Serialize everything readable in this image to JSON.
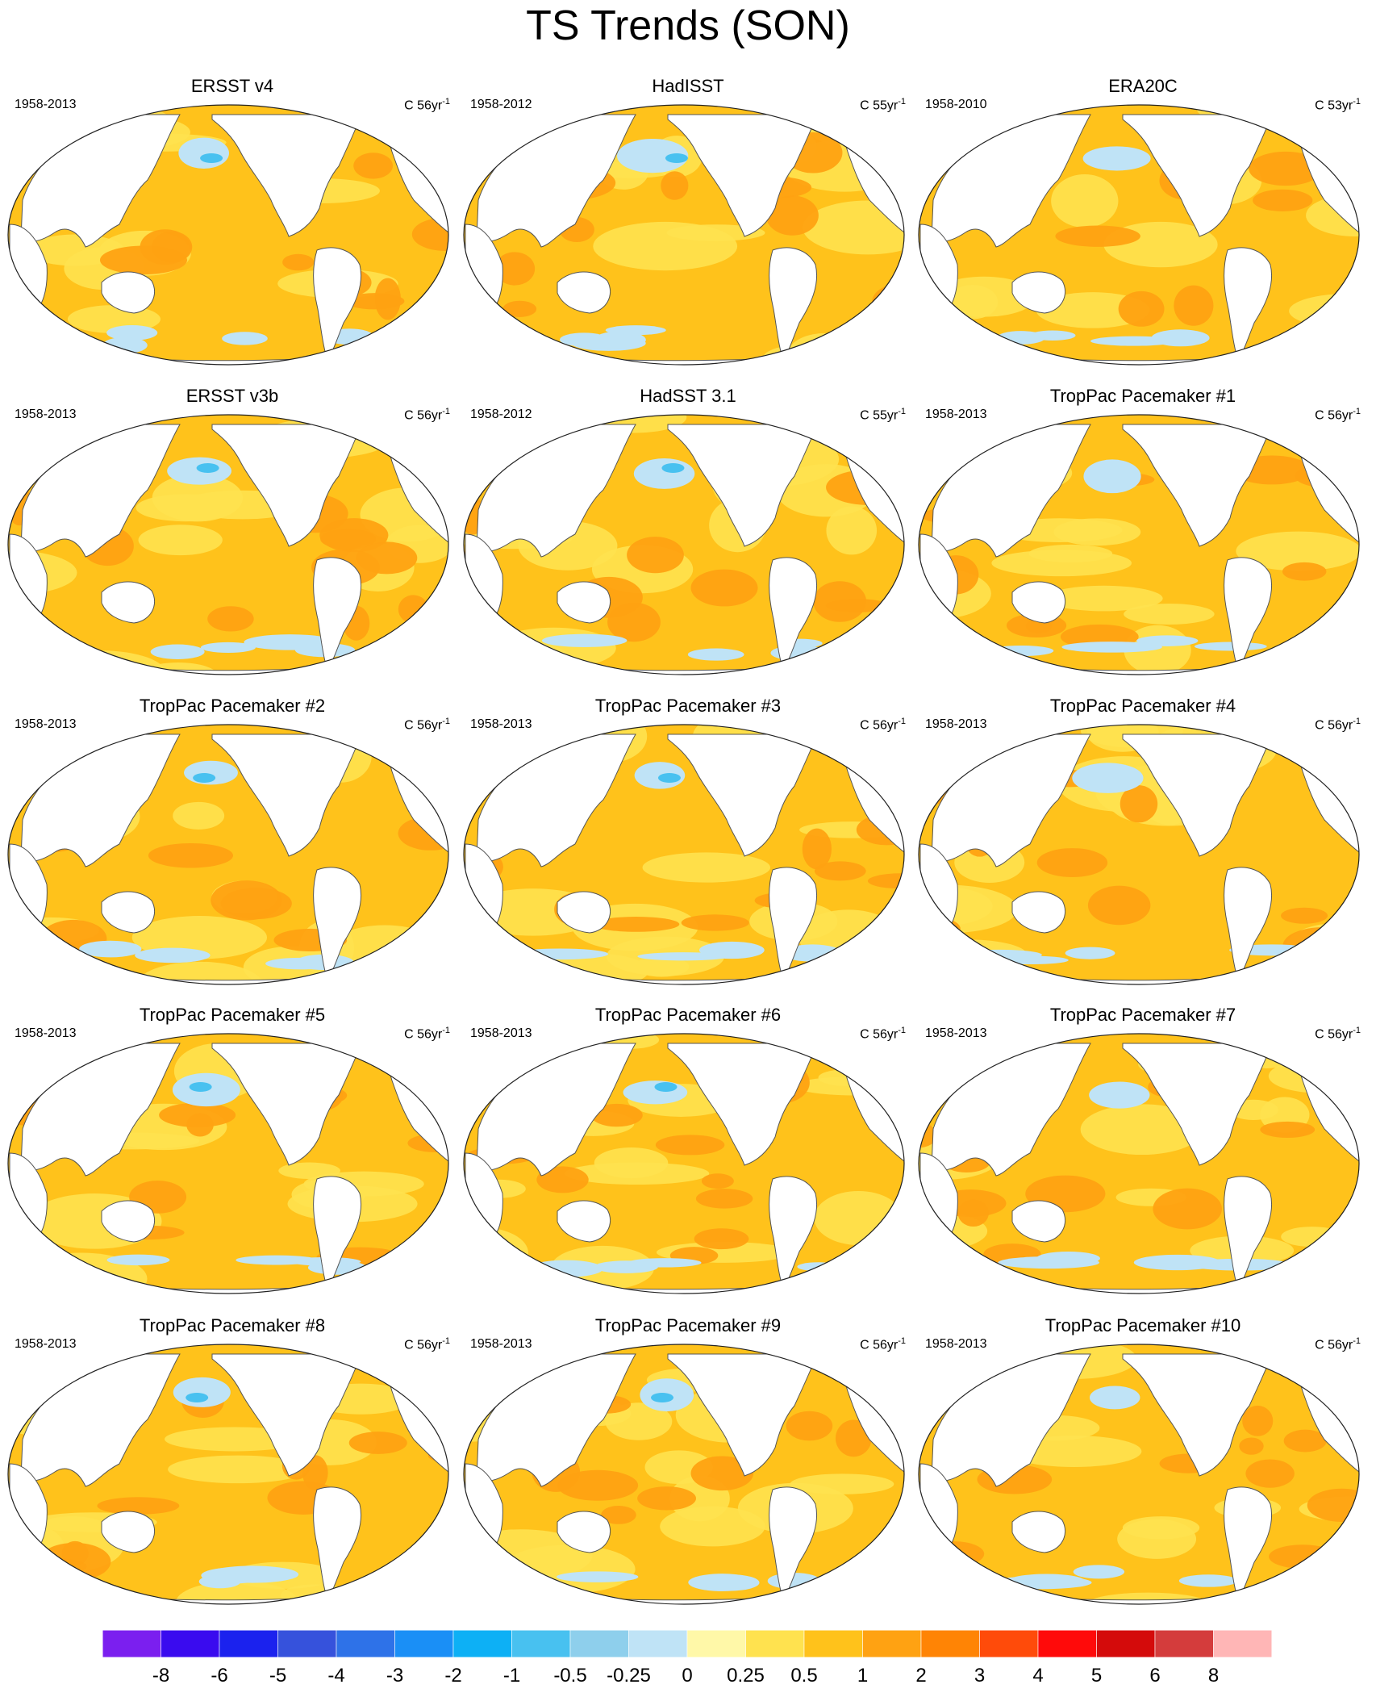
{
  "title": "TS Trends (SON)",
  "panels": [
    {
      "title": "ERSST v4",
      "period": "1958-2013",
      "units": "C 56yr",
      "units_exp": "-1"
    },
    {
      "title": "HadISST",
      "period": "1958-2012",
      "units": "C 55yr",
      "units_exp": "-1"
    },
    {
      "title": "ERA20C",
      "period": "1958-2010",
      "units": "C 53yr",
      "units_exp": "-1"
    },
    {
      "title": "ERSST v3b",
      "period": "1958-2013",
      "units": "C 56yr",
      "units_exp": "-1"
    },
    {
      "title": "HadSST 3.1",
      "period": "1958-2012",
      "units": "C 55yr",
      "units_exp": "-1"
    },
    {
      "title": "TropPac Pacemaker #1",
      "period": "1958-2013",
      "units": "C 56yr",
      "units_exp": "-1"
    },
    {
      "title": "TropPac Pacemaker #2",
      "period": "1958-2013",
      "units": "C 56yr",
      "units_exp": "-1"
    },
    {
      "title": "TropPac Pacemaker #3",
      "period": "1958-2013",
      "units": "C 56yr",
      "units_exp": "-1"
    },
    {
      "title": "TropPac Pacemaker #4",
      "period": "1958-2013",
      "units": "C 56yr",
      "units_exp": "-1"
    },
    {
      "title": "TropPac Pacemaker #5",
      "period": "1958-2013",
      "units": "C 56yr",
      "units_exp": "-1"
    },
    {
      "title": "TropPac Pacemaker #6",
      "period": "1958-2013",
      "units": "C 56yr",
      "units_exp": "-1"
    },
    {
      "title": "TropPac Pacemaker #7",
      "period": "1958-2013",
      "units": "C 56yr",
      "units_exp": "-1"
    },
    {
      "title": "TropPac Pacemaker #8",
      "period": "1958-2013",
      "units": "C 56yr",
      "units_exp": "-1"
    },
    {
      "title": "TropPac Pacemaker #9",
      "period": "1958-2013",
      "units": "C 56yr",
      "units_exp": "-1"
    },
    {
      "title": "TropPac Pacemaker #10",
      "period": "1958-2013",
      "units": "C 56yr",
      "units_exp": "-1"
    }
  ],
  "colorbar": {
    "labels": [
      "-8",
      "-6",
      "-5",
      "-4",
      "-3",
      "-2",
      "-1",
      "-0.5",
      "-0.25",
      "0",
      "0.25",
      "0.5",
      "1",
      "2",
      "3",
      "4",
      "5",
      "6",
      "8"
    ],
    "colors": [
      "#7b1fef",
      "#3a0bef",
      "#1b22ee",
      "#3652dc",
      "#2e72e8",
      "#1a8ff6",
      "#0db0f5",
      "#48c1f0",
      "#8ecfec",
      "#bfe3f6",
      "#fff8a8",
      "#ffe24f",
      "#ffc21b",
      "#ffa212",
      "#ff8405",
      "#ff4b0a",
      "#ff0a0a",
      "#d40b0b",
      "#d43c3c",
      "#ffb6b6"
    ]
  },
  "map_palette": {
    "ocean_base": "#ffc21b",
    "warm": "#ffa212",
    "light": "#ffe24f",
    "cool": "#bfe3f6",
    "cold": "#48c1f0",
    "land": "#ffffff",
    "outline": "#555555"
  }
}
